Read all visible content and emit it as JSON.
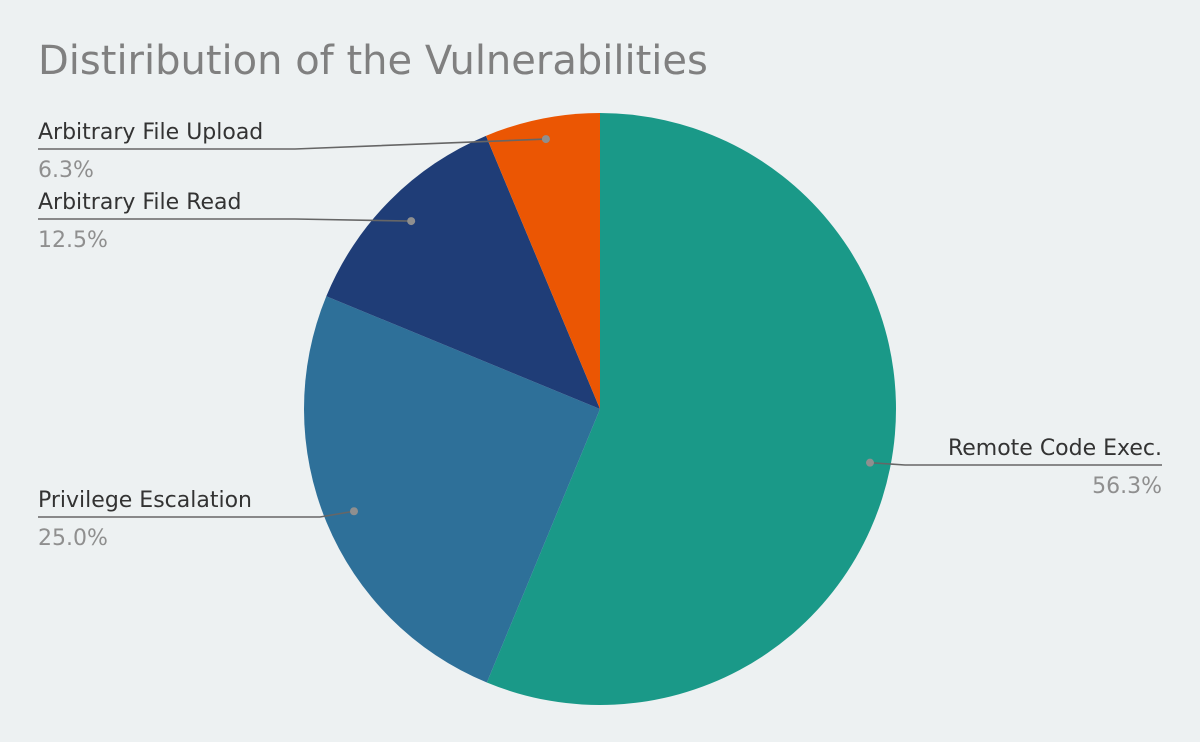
{
  "chart_data": {
    "type": "pie",
    "title": "Distiribution of the Vulnerabilities",
    "start_angle_deg": 0,
    "direction": "clockwise",
    "slices": [
      {
        "label": "Remote Code Exec.",
        "value": 56.3,
        "display": "56.3%",
        "color": "#1a9988"
      },
      {
        "label": "Privilege Escalation",
        "value": 25.0,
        "display": "25.0%",
        "color": "#2e7099"
      },
      {
        "label": "Arbitrary File Read",
        "value": 12.5,
        "display": "12.5%",
        "color": "#1f3d77"
      },
      {
        "label": "Arbitrary File Upload",
        "value": 6.3,
        "display": "6.3%",
        "color": "#eb5603"
      }
    ]
  }
}
